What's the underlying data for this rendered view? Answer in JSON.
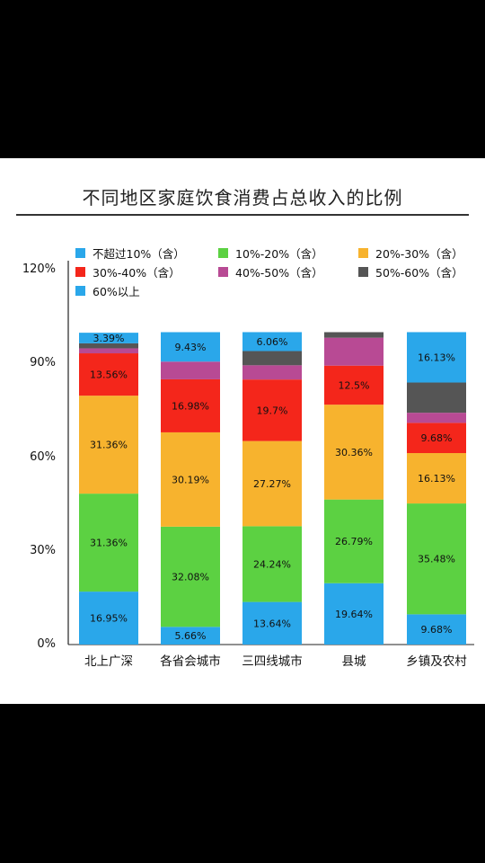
{
  "chart_data": {
    "type": "bar",
    "stacked": true,
    "title": "不同地区家庭饮食消费占总收入的比例",
    "categories": [
      "北上广深",
      "各省会城市",
      "三四线城市",
      "县城",
      "乡镇及农村"
    ],
    "ylim": [
      0,
      120
    ],
    "yticks": [
      "0%",
      "30%",
      "60%",
      "90%",
      "120%"
    ],
    "legend_position": "top",
    "series": [
      {
        "name": "不超过10%（含）",
        "color": "#2aa7ea",
        "values": [
          16.95,
          5.66,
          13.64,
          19.64,
          9.68
        ],
        "labels": [
          "16.95%",
          "5.66%",
          "13.64%",
          "19.64%",
          "9.68%"
        ]
      },
      {
        "name": "10%-20%（含）",
        "color": "#5cd142",
        "values": [
          31.36,
          32.08,
          24.24,
          26.79,
          35.48
        ],
        "labels": [
          "31.36%",
          "32.08%",
          "24.24%",
          "26.79%",
          "35.48%"
        ]
      },
      {
        "name": "20%-30%（含）",
        "color": "#f7b32e",
        "values": [
          31.36,
          30.19,
          27.27,
          30.36,
          16.13
        ],
        "labels": [
          "31.36%",
          "30.19%",
          "27.27%",
          "30.36%",
          "16.13%"
        ]
      },
      {
        "name": "30%-40%（含）",
        "color": "#f4261b",
        "values": [
          13.56,
          16.98,
          19.7,
          12.5,
          9.68
        ],
        "labels": [
          "13.56%",
          "16.98%",
          "19.7%",
          "12.5%",
          "9.68%"
        ]
      },
      {
        "name": "40%-50%（含）",
        "color": "#b84a94",
        "values": [
          1.6,
          5.66,
          4.55,
          8.93,
          3.23
        ],
        "labels": [
          "",
          "",
          "",
          "",
          ""
        ]
      },
      {
        "name": "50%-60%（含）",
        "color": "#555555",
        "values": [
          1.6,
          0,
          4.55,
          1.78,
          9.68
        ],
        "labels": [
          "",
          "",
          "",
          "",
          ""
        ]
      },
      {
        "name": "60%以上",
        "color": "#2aa7ea",
        "values": [
          3.39,
          9.43,
          6.06,
          0,
          16.13
        ],
        "labels": [
          "3.39%",
          "9.43%",
          "6.06%",
          "",
          "16.13%"
        ]
      }
    ]
  }
}
